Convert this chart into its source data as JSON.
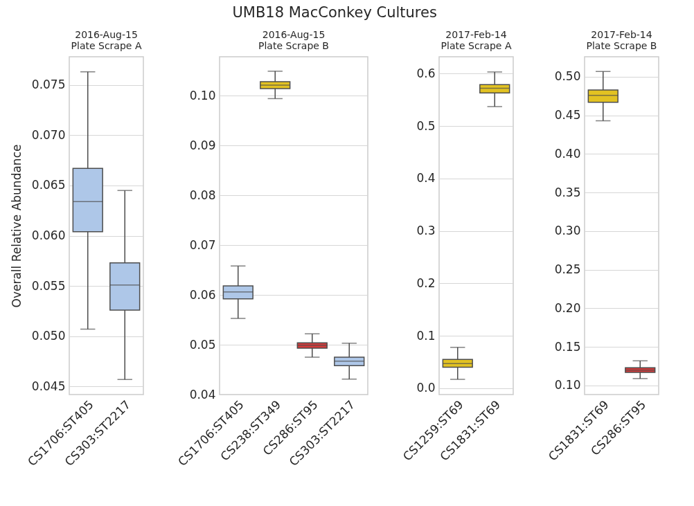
{
  "chart_data": [
    {
      "type": "box",
      "subtitle": "2016-Aug-15\nPlate Scrape A",
      "ylabel": "Overall Relative Abundance",
      "categories": [
        "CS1706:ST405",
        "CS303:ST2217"
      ],
      "boxes": [
        {
          "low": 0.0507,
          "q1": 0.0604,
          "median": 0.0634,
          "q3": 0.0667,
          "high": 0.0763
        },
        {
          "low": 0.0457,
          "q1": 0.0526,
          "median": 0.0551,
          "q3": 0.0573,
          "high": 0.0645
        }
      ],
      "colors": [
        "#aec7e8",
        "#aec7e8"
      ],
      "ylim": [
        0.0442,
        0.0778
      ],
      "yticks": [
        0.045,
        {
          "value": 0.05,
          "label": "0.050"
        },
        0.055,
        {
          "value": 0.06,
          "label": "0.060"
        },
        0.065,
        {
          "value": 0.07,
          "label": "0.070"
        },
        0.075
      ],
      "grid": "y"
    },
    {
      "type": "box",
      "title": "UMB18 MacConkey Cultures",
      "subtitle": "2016-Aug-15\nPlate Scrape B",
      "categories": [
        "CS1706:ST405",
        "CS238:ST349",
        "CS286:ST95",
        "CS303:ST2217"
      ],
      "boxes": [
        {
          "low": 0.0553,
          "q1": 0.0592,
          "median": 0.0606,
          "q3": 0.0618,
          "high": 0.0658
        },
        {
          "low": 0.0994,
          "q1": 0.1014,
          "median": 0.1021,
          "q3": 0.1028,
          "high": 0.1049
        },
        {
          "low": 0.0475,
          "q1": 0.0493,
          "median": 0.0499,
          "q3": 0.0504,
          "high": 0.0522
        },
        {
          "low": 0.0431,
          "q1": 0.0458,
          "median": 0.0467,
          "q3": 0.0475,
          "high": 0.0503
        }
      ],
      "colors": [
        "#aec7e8",
        "#e2c222",
        "#d13b3b",
        "#aec7e8"
      ],
      "ylim": [
        0.04,
        0.1078
      ],
      "yticks": [
        0.04,
        0.05,
        0.06,
        0.07,
        0.08,
        0.09,
        {
          "value": 0.1,
          "label": "0.10"
        }
      ],
      "grid": "y"
    },
    {
      "type": "box",
      "subtitle": "2017-Feb-14\nPlate Scrape A",
      "categories": [
        "CS1259:ST69",
        "CS1831:ST69"
      ],
      "boxes": [
        {
          "low": 0.017,
          "q1": 0.04,
          "median": 0.047,
          "q3": 0.055,
          "high": 0.078
        },
        {
          "low": 0.537,
          "q1": 0.563,
          "median": 0.572,
          "q3": 0.579,
          "high": 0.603
        }
      ],
      "colors": [
        "#e2c222",
        "#e2c222"
      ],
      "ylim": [
        -0.012,
        0.632
      ],
      "yticks": [
        {
          "value": 0,
          "label": "0.0"
        },
        0.1,
        0.2,
        0.3,
        0.4,
        0.5,
        0.6
      ],
      "grid": "y"
    },
    {
      "type": "box",
      "subtitle": "2017-Feb-14\nPlate Scrape B",
      "categories": [
        "CS1831:ST69",
        "CS286:ST95"
      ],
      "boxes": [
        {
          "low": 0.443,
          "q1": 0.467,
          "median": 0.476,
          "q3": 0.483,
          "high": 0.507
        },
        {
          "low": 0.109,
          "q1": 0.117,
          "median": 0.12,
          "q3": 0.123,
          "high": 0.132
        }
      ],
      "colors": [
        "#e2c222",
        "#d13b3b"
      ],
      "ylim": [
        0.0883,
        0.526
      ],
      "yticks": [
        {
          "value": 0.1,
          "label": "0.10"
        },
        0.15,
        {
          "value": 0.2,
          "label": "0.20"
        },
        0.25,
        {
          "value": 0.3,
          "label": "0.30"
        },
        0.35,
        {
          "value": 0.4,
          "label": "0.40"
        },
        0.45,
        {
          "value": 0.5,
          "label": "0.50"
        }
      ],
      "grid": "y"
    }
  ]
}
